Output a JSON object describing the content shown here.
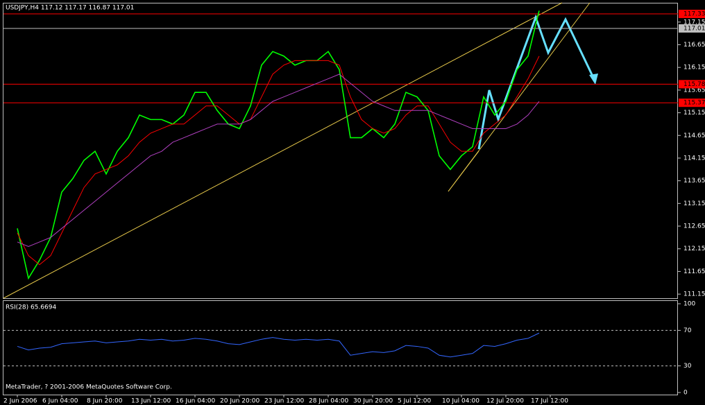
{
  "chart_data": [
    {
      "type": "line",
      "title": "USDJPY,H4  117.12 117.17 116.87 117.01",
      "categories": [
        "2 Jun 2006",
        null,
        null,
        null,
        "6 Jun 04:00",
        null,
        null,
        null,
        "8 Jun 20:00",
        null,
        null,
        null,
        "13 Jun 12:00",
        null,
        null,
        null,
        "16 Jun 04:00",
        null,
        null,
        null,
        "20 Jun 20:00",
        null,
        null,
        null,
        "23 Jun 12:00",
        null,
        null,
        null,
        "28 Jun 04:00",
        null,
        null,
        null,
        "30 Jun 20:00",
        null,
        null,
        null,
        "5 Jul 12:00",
        null,
        null,
        null,
        "10 Jul 04:00",
        null,
        null,
        null,
        "12 Jul 20:00",
        null,
        null,
        null,
        "17 Jul 12:00"
      ],
      "series": [
        {
          "color": "#00ff00",
          "values": [
            112.6,
            111.5,
            111.9,
            112.4,
            113.4,
            113.7,
            114.1,
            114.3,
            113.8,
            114.3,
            114.6,
            115.1,
            115.0,
            115.0,
            114.9,
            115.1,
            115.6,
            115.6,
            115.2,
            114.9,
            114.8,
            115.3,
            116.2,
            116.5,
            116.4,
            116.2,
            116.3,
            116.3,
            116.5,
            116.1,
            114.6,
            114.6,
            114.8,
            114.6,
            114.9,
            115.6,
            115.5,
            115.2,
            114.2,
            113.9,
            114.2,
            114.4,
            115.5,
            115.1,
            115.4,
            116.1,
            116.4,
            117.4,
            null
          ]
        },
        {
          "color": "#ff0000",
          "values": [
            112.5,
            112.0,
            111.8,
            112.0,
            112.5,
            113.0,
            113.5,
            113.8,
            113.9,
            114.0,
            114.2,
            114.5,
            114.7,
            114.8,
            114.9,
            114.9,
            115.1,
            115.3,
            115.3,
            115.1,
            114.9,
            115.0,
            115.5,
            116.0,
            116.2,
            116.3,
            116.3,
            116.3,
            116.3,
            116.2,
            115.5,
            115.0,
            114.8,
            114.7,
            114.8,
            115.1,
            115.3,
            115.3,
            114.9,
            114.5,
            114.3,
            114.3,
            114.7,
            114.9,
            115.1,
            115.5,
            115.9,
            116.4,
            null
          ]
        },
        {
          "color": "#b040c0",
          "values": [
            112.3,
            112.2,
            112.3,
            112.4,
            112.6,
            112.8,
            113.0,
            113.2,
            113.4,
            113.6,
            113.8,
            114.0,
            114.2,
            114.3,
            114.5,
            114.6,
            114.7,
            114.8,
            114.9,
            114.9,
            114.9,
            115.0,
            115.2,
            115.4,
            115.5,
            115.6,
            115.7,
            115.8,
            115.9,
            116.0,
            115.8,
            115.6,
            115.4,
            115.3,
            115.2,
            115.2,
            115.2,
            115.2,
            115.1,
            115.0,
            114.9,
            114.8,
            114.8,
            114.8,
            114.8,
            114.9,
            115.1,
            115.4,
            null
          ]
        }
      ],
      "ylim": [
        111.06,
        117.56
      ],
      "yticks": [
        111.15,
        111.65,
        112.15,
        112.65,
        113.15,
        113.65,
        114.15,
        114.65,
        115.15,
        115.65,
        116.15,
        116.65,
        117.15
      ],
      "levels": [
        {
          "value": 117.33,
          "color": "#ff0000"
        },
        {
          "value": 117.01,
          "color": "#c0c0c0"
        },
        {
          "value": 115.78,
          "color": "#ff0000"
        },
        {
          "value": 115.37,
          "color": "#ff0000"
        }
      ]
    },
    {
      "type": "line",
      "title": "RSI(28) 65.6694",
      "series": [
        {
          "color": "#3366ff",
          "values": [
            52,
            48,
            50,
            51,
            55,
            56,
            57,
            58,
            56,
            57,
            58,
            60,
            59,
            60,
            58,
            59,
            61,
            60,
            58,
            55,
            54,
            57,
            60,
            62,
            60,
            59,
            60,
            59,
            60,
            58,
            42,
            44,
            46,
            45,
            47,
            53,
            52,
            50,
            42,
            40,
            42,
            44,
            53,
            52,
            55,
            59,
            61,
            67,
            null
          ]
        }
      ],
      "ylim": [
        0,
        100
      ],
      "yticks": [
        0,
        30,
        70,
        100
      ],
      "dashed_ticks": [
        30,
        70
      ],
      "footer": "MetaTrader, ? 2001-2006 MetaQuotes Software Corp."
    }
  ]
}
